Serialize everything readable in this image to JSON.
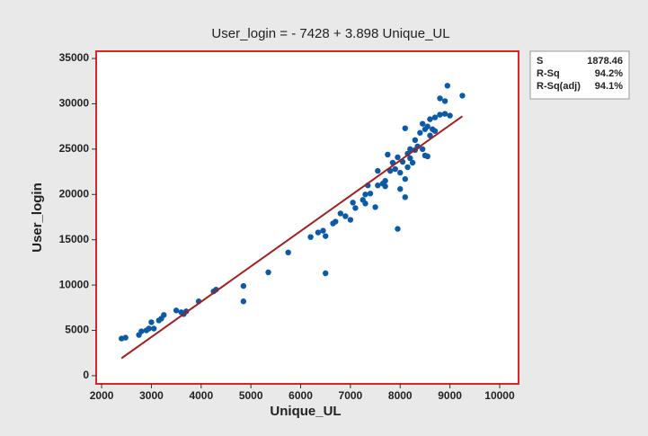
{
  "chart_data": {
    "type": "scatter",
    "title": "User_login = - 7428 + 3.898 Unique_UL",
    "xlabel": "Unique_UL",
    "ylabel": "User_login",
    "xlim": [
      1890,
      10380
    ],
    "ylim": [
      -900,
      35800
    ],
    "xticks": [
      2000,
      3000,
      4000,
      5000,
      6000,
      7000,
      8000,
      9000,
      10000
    ],
    "yticks": [
      0,
      5000,
      10000,
      15000,
      20000,
      25000,
      30000,
      35000
    ],
    "points": {
      "color": "#0a5aa8",
      "x": [
        2400,
        2480,
        2750,
        2800,
        2900,
        2950,
        3000,
        3050,
        3150,
        3200,
        3250,
        3500,
        3600,
        3650,
        3700,
        3950,
        4250,
        4300,
        4850,
        4850,
        5350,
        5750,
        6200,
        6350,
        6450,
        6500,
        6500,
        6650,
        6700,
        6800,
        6900,
        7000,
        7050,
        7100,
        7250,
        7300,
        7300,
        7350,
        7400,
        7500,
        7550,
        7550,
        7650,
        7700,
        7700,
        7750,
        7800,
        7850,
        7900,
        7950,
        7950,
        8000,
        8000,
        8050,
        8100,
        8100,
        8100,
        8150,
        8150,
        8200,
        8200,
        8250,
        8300,
        8300,
        8350,
        8400,
        8450,
        8450,
        8500,
        8500,
        8550,
        8550,
        8600,
        8600,
        8650,
        8700,
        8700,
        8800,
        8800,
        8900,
        8950,
        8900,
        9000,
        9250
      ],
      "y": [
        4100,
        4200,
        4500,
        4900,
        5000,
        5200,
        5900,
        5200,
        6100,
        6300,
        6700,
        7200,
        7000,
        6800,
        7100,
        8200,
        9300,
        9500,
        8200,
        9900,
        11400,
        13600,
        15300,
        15800,
        16000,
        15400,
        11300,
        16800,
        17000,
        17900,
        17600,
        17200,
        19100,
        18500,
        19400,
        20000,
        19000,
        21000,
        20100,
        18600,
        22600,
        21000,
        21200,
        20900,
        21500,
        24400,
        22600,
        23500,
        22800,
        16200,
        24100,
        22400,
        20600,
        23600,
        21700,
        27300,
        19700,
        24500,
        23000,
        25000,
        24000,
        23500,
        24900,
        26000,
        25300,
        26800,
        27800,
        25000,
        24300,
        27200,
        27500,
        24200,
        28300,
        26500,
        27200,
        28500,
        27000,
        28800,
        30600,
        30300,
        32000,
        28900,
        28700,
        30900
      ]
    },
    "fit_line": {
      "color": "#a31f1f",
      "x": [
        2400,
        9250
      ],
      "values": [
        1927,
        28628
      ]
    },
    "stats": [
      {
        "label": "S",
        "value": "1878.46"
      },
      {
        "label": "R-Sq",
        "value": "94.2%"
      },
      {
        "label": "R-Sq(adj)",
        "value": "94.1%"
      }
    ],
    "frame_color": "#d7262e"
  }
}
